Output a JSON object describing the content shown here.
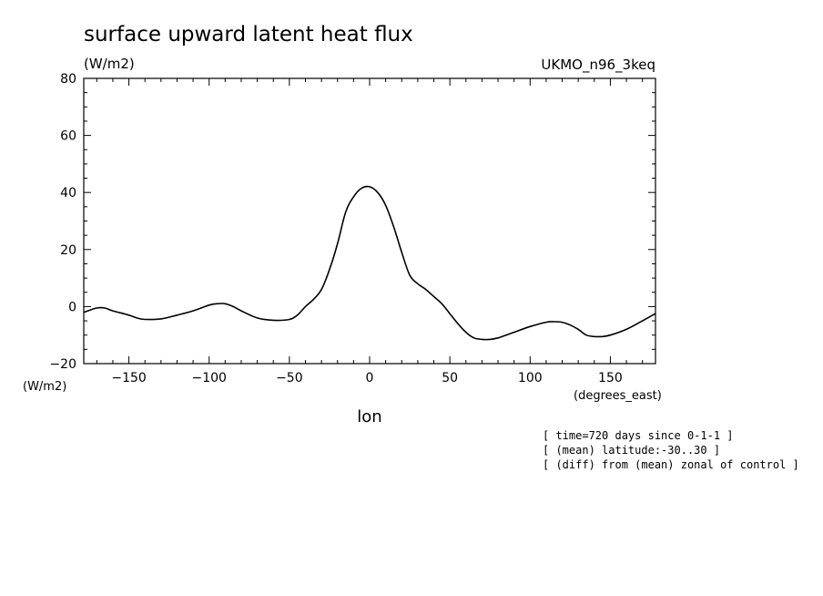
{
  "chart_data": {
    "type": "line",
    "title": "surface upward latent heat flux",
    "ylabel": "(W/m2)",
    "y_axis_unit_bottom": "(W/m2)",
    "xlabel": "lon",
    "x_unit": "(degrees_east)",
    "model_label": "UKMO_n96_3keq",
    "xlim": [
      -178.125,
      178.125
    ],
    "ylim": [
      -20,
      80
    ],
    "x_ticks": [
      -150,
      -100,
      -50,
      0,
      50,
      100,
      150
    ],
    "x_tick_labels": [
      "−150",
      "−100",
      "−50",
      "0",
      "50",
      "100",
      "150"
    ],
    "y_ticks": [
      -20,
      0,
      20,
      40,
      60,
      80
    ],
    "y_tick_labels": [
      "−20",
      "0",
      "20",
      "40",
      "60",
      "80"
    ],
    "grid": false,
    "annotations": [
      "[ time=720 days since 0-1-1 ]",
      "[ (mean) latitude:-30..30 ]",
      "[ (diff) from (mean) zonal of control ]"
    ],
    "series": [
      {
        "x": [
          -178,
          -170,
          -165,
          -160,
          -150,
          -145,
          -140,
          -130,
          -120,
          -110,
          -100,
          -95,
          -90,
          -85,
          -80,
          -70,
          -60,
          -50,
          -45,
          -40,
          -35,
          -30,
          -25,
          -20,
          -15,
          -10,
          -5,
          0,
          5,
          10,
          15,
          20,
          25,
          30,
          35,
          40,
          45,
          50,
          55,
          60,
          65,
          70,
          75,
          80,
          85,
          90,
          100,
          110,
          115,
          120,
          125,
          130,
          135,
          140,
          145,
          150,
          160,
          170,
          178
        ],
        "y": [
          -2,
          -0.5,
          -0.5,
          -1.5,
          -3,
          -4,
          -4.5,
          -4.3,
          -3,
          -1.5,
          0.5,
          1,
          1,
          0,
          -1.5,
          -4,
          -4.8,
          -4.5,
          -3,
          0,
          2.5,
          6,
          13,
          22,
          33,
          38.5,
          41.5,
          42,
          40,
          35.5,
          28,
          19,
          11,
          8,
          6,
          3.5,
          1,
          -2.5,
          -6,
          -9,
          -11,
          -11.5,
          -11.5,
          -11,
          -10,
          -9,
          -7,
          -5.5,
          -5.3,
          -5.5,
          -6.5,
          -8,
          -10,
          -10.5,
          -10.5,
          -10,
          -8,
          -5,
          -2.5
        ]
      }
    ]
  }
}
